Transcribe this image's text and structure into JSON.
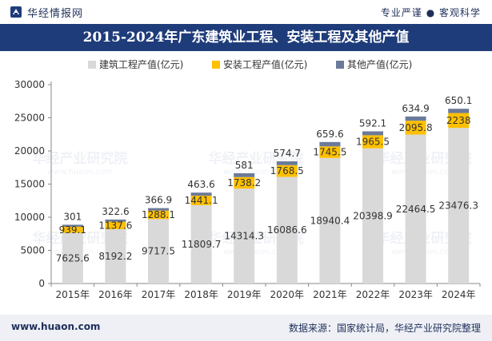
{
  "header": {
    "brand_name": "华经情报网",
    "slogan": "专业严谨 ● 客观科学"
  },
  "footer": {
    "url": "www.huaon.com",
    "source": "数据来源：国家统计局，华经产业研究院整理"
  },
  "watermark": {
    "text": "华经产业研究院",
    "url": "www.huaon.com"
  },
  "colors": {
    "title_bg": "#1f3c7a",
    "building": "#d9d9d9",
    "install": "#ffc000",
    "other": "#6b7a99"
  },
  "chart_data": {
    "type": "bar",
    "stacked": true,
    "title": "2015-2024年广东建筑业工程、安装工程及其他产值",
    "categories": [
      "2015年",
      "2016年",
      "2017年",
      "2018年",
      "2019年",
      "2020年",
      "2021年",
      "2022年",
      "2023年",
      "2024年"
    ],
    "series": [
      {
        "name": "建筑工程产值(亿元)",
        "values": [
          7625.6,
          8192.2,
          9717.5,
          11809.7,
          14314.3,
          16086.6,
          18940.4,
          20398.9,
          22464.5,
          23476.3
        ]
      },
      {
        "name": "安装工程产值(亿元)",
        "values": [
          939.1,
          1137.6,
          1288.1,
          1441.1,
          1738.2,
          1768.5,
          1745.5,
          1965.5,
          2095.8,
          2238
        ]
      },
      {
        "name": "其他产值(亿元)",
        "values": [
          301,
          322.6,
          366.9,
          463.6,
          581,
          574.7,
          659.6,
          592.1,
          634.9,
          650.1
        ]
      }
    ],
    "yticks": [
      "0",
      "5000",
      "10000",
      "15000",
      "20000",
      "25000",
      "30000"
    ],
    "ylim": [
      0,
      30000
    ],
    "legend_position": "top-center"
  }
}
